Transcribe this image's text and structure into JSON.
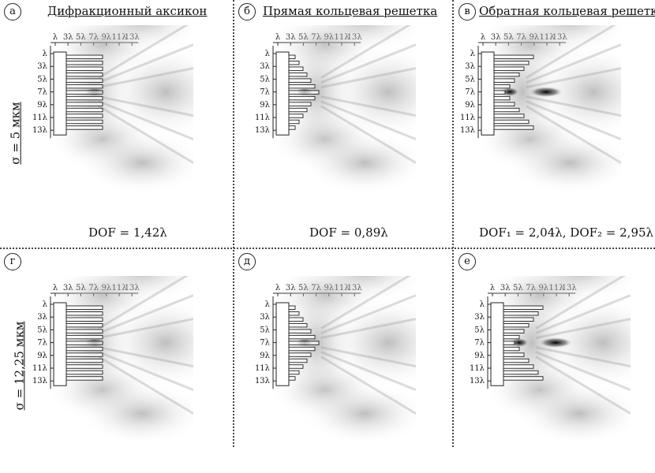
{
  "panels": [
    {
      "id": "a",
      "badge": "а",
      "title": "Дифракционный аксикон",
      "caption": "DOF = 1,42λ",
      "grating": "axicon"
    },
    {
      "id": "b",
      "badge": "б",
      "title": "Прямая кольцевая решетка",
      "caption": "DOF = 0,89λ",
      "grating": "direct"
    },
    {
      "id": "c",
      "badge": "в",
      "title": "Обратная кольцевая решетка",
      "caption": "DOF₁ = 2,04λ, DOF₂ = 2,95λ",
      "grating": "reverse"
    },
    {
      "id": "d",
      "badge": "г",
      "title": "",
      "caption": "",
      "grating": "axicon"
    },
    {
      "id": "e",
      "badge": "д",
      "title": "",
      "caption": "",
      "grating": "direct"
    },
    {
      "id": "f",
      "badge": "е",
      "title": "",
      "caption": "",
      "grating": "reverse"
    }
  ],
  "row_labels": [
    "σ = 5 мкм",
    "σ = 12,25 мкм"
  ],
  "x_ticks": [
    "λ",
    "3λ",
    "5λ",
    "7λ",
    "9λ",
    "11λ",
    "13λ"
  ],
  "y_ticks": [
    "λ",
    "3λ",
    "5λ",
    "7λ",
    "9λ",
    "11λ",
    "13λ"
  ],
  "colors": {
    "ink": "#111111",
    "intensity": "#000000",
    "border": "#444444"
  }
}
